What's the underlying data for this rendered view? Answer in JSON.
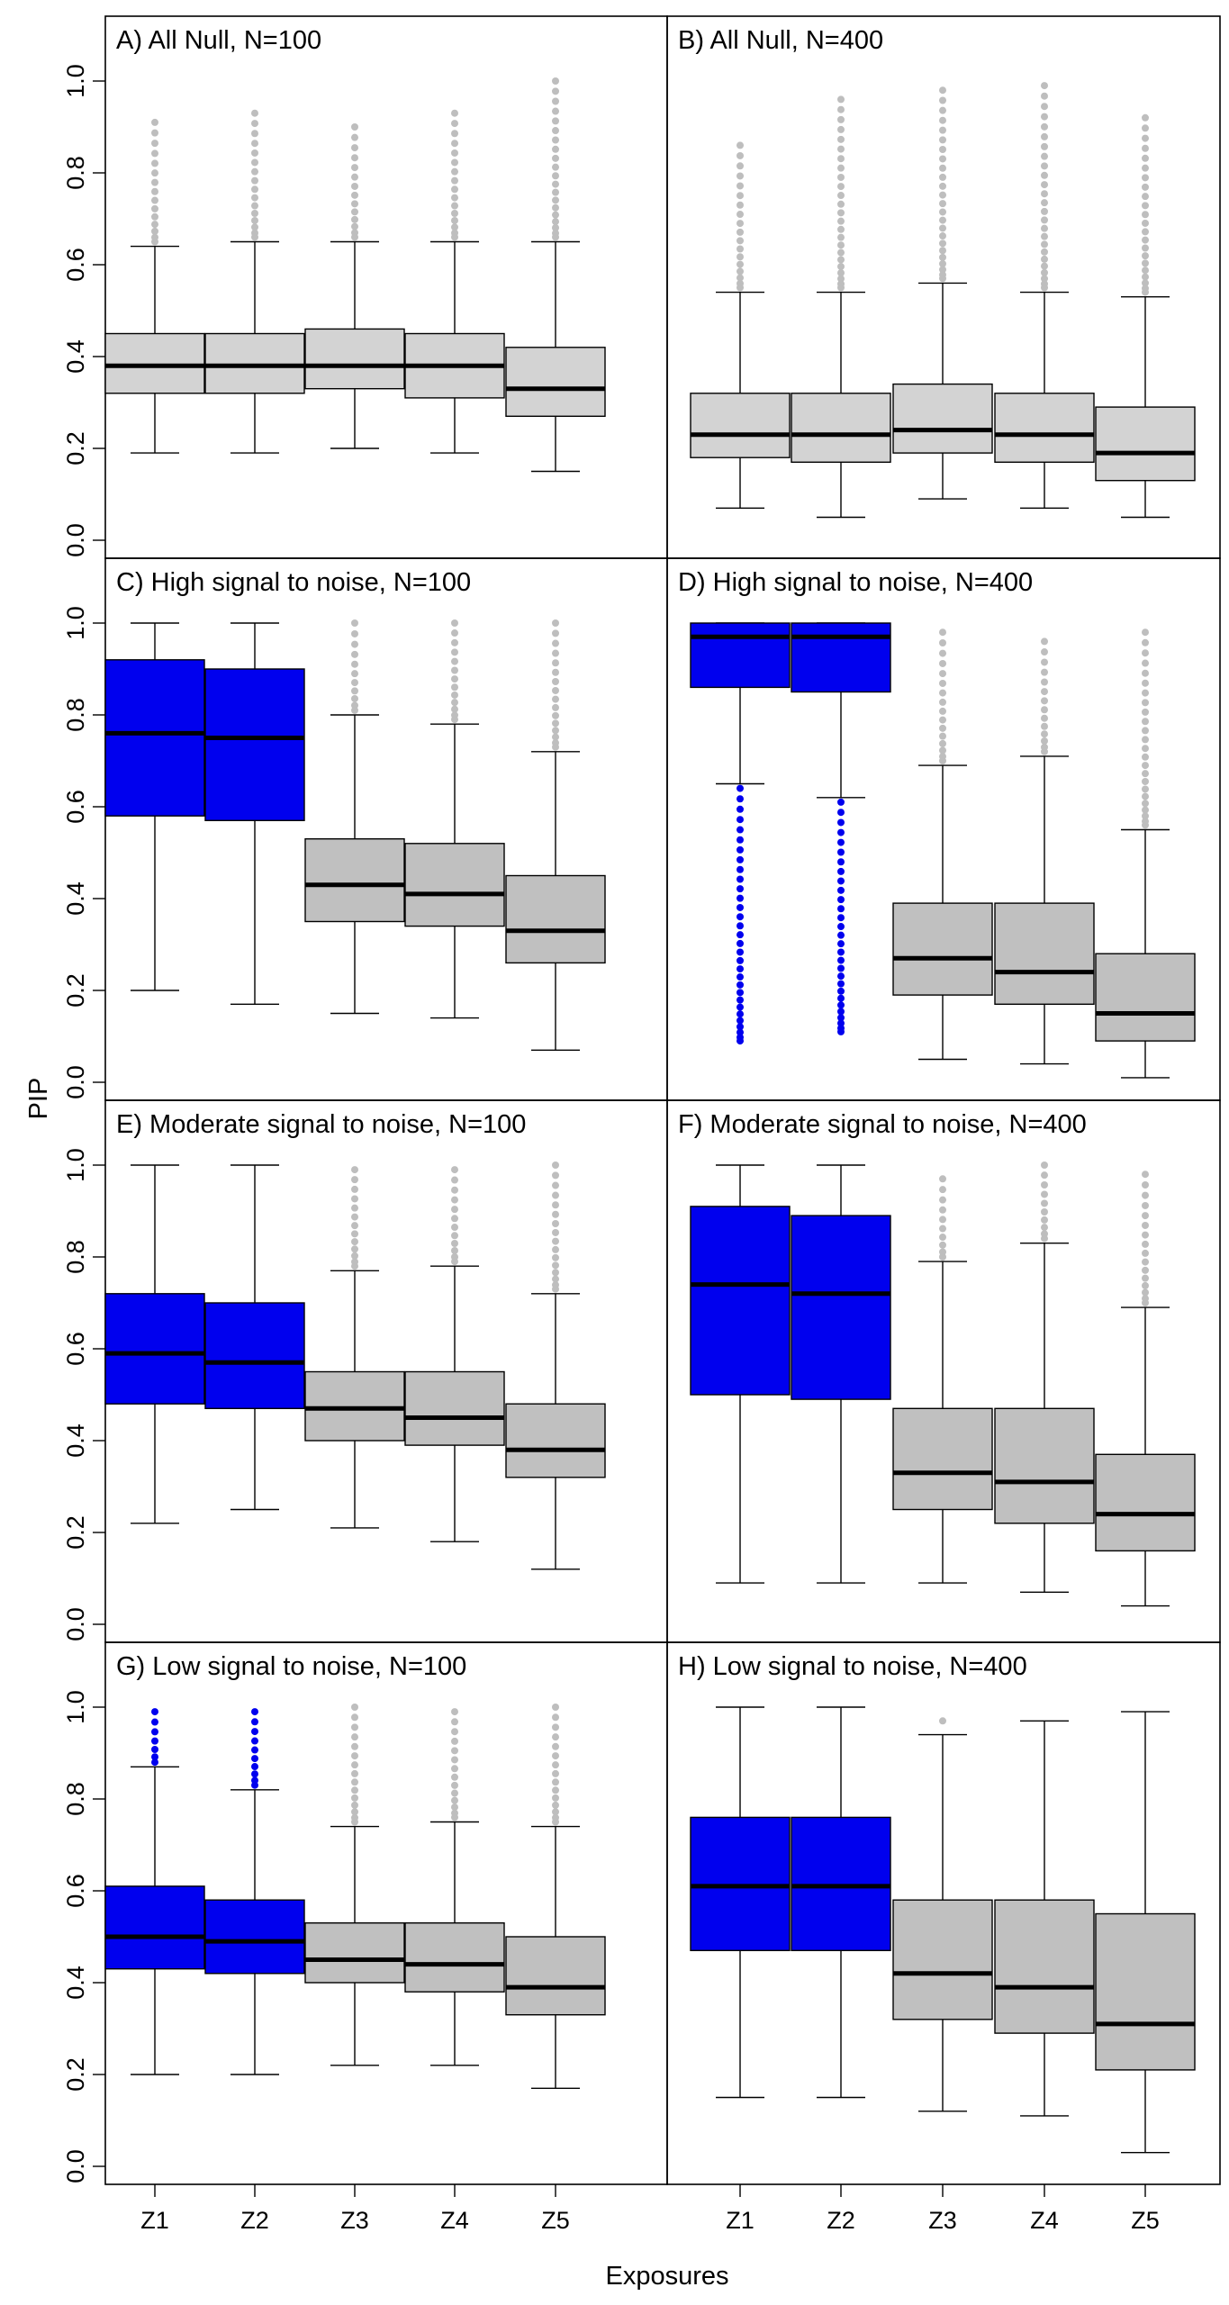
{
  "chart_data": {
    "type": "box",
    "ylabel": "PIP",
    "xlabel": "Exposures",
    "ylim": [
      0,
      1
    ],
    "yticks": [
      "0.0",
      "0.2",
      "0.4",
      "0.6",
      "0.8",
      "1.0"
    ],
    "categories": [
      "Z1",
      "Z2",
      "Z3",
      "Z4",
      "Z5"
    ],
    "colors": {
      "signal": "#0000ee",
      "null": "#d3d3d3",
      "null_dark": "#c0c0c0",
      "outlier_gray": "#bebebe",
      "line": "#000000"
    },
    "panels": [
      {
        "title": "A) All Null, N=100",
        "boxes": [
          {
            "fill": "null",
            "min": 0.19,
            "q1": 0.32,
            "median": 0.38,
            "q3": 0.45,
            "max": 0.64,
            "outliers_from": 0.65,
            "outliers_to": 0.91
          },
          {
            "fill": "null",
            "min": 0.19,
            "q1": 0.32,
            "median": 0.38,
            "q3": 0.45,
            "max": 0.65,
            "outliers_from": 0.66,
            "outliers_to": 0.93
          },
          {
            "fill": "null",
            "min": 0.2,
            "q1": 0.33,
            "median": 0.38,
            "q3": 0.46,
            "max": 0.65,
            "outliers_from": 0.66,
            "outliers_to": 0.9
          },
          {
            "fill": "null",
            "min": 0.19,
            "q1": 0.31,
            "median": 0.38,
            "q3": 0.45,
            "max": 0.65,
            "outliers_from": 0.66,
            "outliers_to": 0.93
          },
          {
            "fill": "null",
            "min": 0.15,
            "q1": 0.27,
            "median": 0.33,
            "q3": 0.42,
            "max": 0.65,
            "outliers_from": 0.66,
            "outliers_to": 1.0
          }
        ]
      },
      {
        "title": "B) All Null, N=400",
        "boxes": [
          {
            "fill": "null",
            "min": 0.07,
            "q1": 0.18,
            "median": 0.23,
            "q3": 0.32,
            "max": 0.54,
            "outliers_from": 0.55,
            "outliers_to": 0.86
          },
          {
            "fill": "null",
            "min": 0.05,
            "q1": 0.17,
            "median": 0.23,
            "q3": 0.32,
            "max": 0.54,
            "outliers_from": 0.55,
            "outliers_to": 0.96
          },
          {
            "fill": "null",
            "min": 0.09,
            "q1": 0.19,
            "median": 0.24,
            "q3": 0.34,
            "max": 0.56,
            "outliers_from": 0.57,
            "outliers_to": 0.98
          },
          {
            "fill": "null",
            "min": 0.07,
            "q1": 0.17,
            "median": 0.23,
            "q3": 0.32,
            "max": 0.54,
            "outliers_from": 0.55,
            "outliers_to": 0.99
          },
          {
            "fill": "null",
            "min": 0.05,
            "q1": 0.13,
            "median": 0.19,
            "q3": 0.29,
            "max": 0.53,
            "outliers_from": 0.54,
            "outliers_to": 0.92
          }
        ]
      },
      {
        "title": "C) High signal to noise, N=100",
        "boxes": [
          {
            "fill": "signal",
            "min": 0.2,
            "q1": 0.58,
            "median": 0.76,
            "q3": 0.92,
            "max": 1.0
          },
          {
            "fill": "signal",
            "min": 0.17,
            "q1": 0.57,
            "median": 0.75,
            "q3": 0.9,
            "max": 1.0
          },
          {
            "fill": "null_dark",
            "min": 0.15,
            "q1": 0.35,
            "median": 0.43,
            "q3": 0.53,
            "max": 0.8,
            "outliers_from": 0.81,
            "outliers_to": 1.0
          },
          {
            "fill": "null_dark",
            "min": 0.14,
            "q1": 0.34,
            "median": 0.41,
            "q3": 0.52,
            "max": 0.78,
            "outliers_from": 0.79,
            "outliers_to": 1.0
          },
          {
            "fill": "null_dark",
            "min": 0.07,
            "q1": 0.26,
            "median": 0.33,
            "q3": 0.45,
            "max": 0.72,
            "outliers_from": 0.73,
            "outliers_to": 1.0
          }
        ]
      },
      {
        "title": "D) High signal to noise, N=400",
        "boxes": [
          {
            "fill": "signal",
            "min": 0.65,
            "q1": 0.86,
            "median": 0.97,
            "q3": 1.0,
            "max": 1.0,
            "outliers_from": 0.09,
            "outliers_to": 0.64,
            "outlier_color": "signal"
          },
          {
            "fill": "signal",
            "min": 0.62,
            "q1": 0.85,
            "median": 0.97,
            "q3": 1.0,
            "max": 1.0,
            "outliers_from": 0.11,
            "outliers_to": 0.61,
            "outlier_color": "signal"
          },
          {
            "fill": "null_dark",
            "min": 0.05,
            "q1": 0.19,
            "median": 0.27,
            "q3": 0.39,
            "max": 0.69,
            "outliers_from": 0.7,
            "outliers_to": 0.98
          },
          {
            "fill": "null_dark",
            "min": 0.04,
            "q1": 0.17,
            "median": 0.24,
            "q3": 0.39,
            "max": 0.71,
            "outliers_from": 0.72,
            "outliers_to": 0.96
          },
          {
            "fill": "null_dark",
            "min": 0.01,
            "q1": 0.09,
            "median": 0.15,
            "q3": 0.28,
            "max": 0.55,
            "outliers_from": 0.56,
            "outliers_to": 0.98
          }
        ]
      },
      {
        "title": "E) Moderate signal to noise, N=100",
        "boxes": [
          {
            "fill": "signal",
            "min": 0.22,
            "q1": 0.48,
            "median": 0.59,
            "q3": 0.72,
            "max": 1.0
          },
          {
            "fill": "signal",
            "min": 0.25,
            "q1": 0.47,
            "median": 0.57,
            "q3": 0.7,
            "max": 1.0
          },
          {
            "fill": "null_dark",
            "min": 0.21,
            "q1": 0.4,
            "median": 0.47,
            "q3": 0.55,
            "max": 0.77,
            "outliers_from": 0.78,
            "outliers_to": 0.99
          },
          {
            "fill": "null_dark",
            "min": 0.18,
            "q1": 0.39,
            "median": 0.45,
            "q3": 0.55,
            "max": 0.78,
            "outliers_from": 0.79,
            "outliers_to": 0.99
          },
          {
            "fill": "null_dark",
            "min": 0.12,
            "q1": 0.32,
            "median": 0.38,
            "q3": 0.48,
            "max": 0.72,
            "outliers_from": 0.73,
            "outliers_to": 1.0
          }
        ]
      },
      {
        "title": "F) Moderate signal to noise, N=400",
        "boxes": [
          {
            "fill": "signal",
            "min": 0.09,
            "q1": 0.5,
            "median": 0.74,
            "q3": 0.91,
            "max": 1.0
          },
          {
            "fill": "signal",
            "min": 0.09,
            "q1": 0.49,
            "median": 0.72,
            "q3": 0.89,
            "max": 1.0
          },
          {
            "fill": "null_dark",
            "min": 0.09,
            "q1": 0.25,
            "median": 0.33,
            "q3": 0.47,
            "max": 0.79,
            "outliers_from": 0.8,
            "outliers_to": 0.97
          },
          {
            "fill": "null_dark",
            "min": 0.07,
            "q1": 0.22,
            "median": 0.31,
            "q3": 0.47,
            "max": 0.83,
            "outliers_from": 0.84,
            "outliers_to": 1.0
          },
          {
            "fill": "null_dark",
            "min": 0.04,
            "q1": 0.16,
            "median": 0.24,
            "q3": 0.37,
            "max": 0.69,
            "outliers_from": 0.7,
            "outliers_to": 0.98
          }
        ]
      },
      {
        "title": "G) Low signal to noise, N=100",
        "boxes": [
          {
            "fill": "signal",
            "min": 0.2,
            "q1": 0.43,
            "median": 0.5,
            "q3": 0.61,
            "max": 0.87,
            "outliers_from": 0.88,
            "outliers_to": 0.99,
            "outlier_color": "signal"
          },
          {
            "fill": "signal",
            "min": 0.2,
            "q1": 0.42,
            "median": 0.49,
            "q3": 0.58,
            "max": 0.82,
            "outliers_from": 0.83,
            "outliers_to": 0.99,
            "outlier_color": "signal"
          },
          {
            "fill": "null_dark",
            "min": 0.22,
            "q1": 0.4,
            "median": 0.45,
            "q3": 0.53,
            "max": 0.74,
            "outliers_from": 0.75,
            "outliers_to": 1.0
          },
          {
            "fill": "null_dark",
            "min": 0.22,
            "q1": 0.38,
            "median": 0.44,
            "q3": 0.53,
            "max": 0.75,
            "outliers_from": 0.76,
            "outliers_to": 0.99
          },
          {
            "fill": "null_dark",
            "min": 0.17,
            "q1": 0.33,
            "median": 0.39,
            "q3": 0.5,
            "max": 0.74,
            "outliers_from": 0.75,
            "outliers_to": 1.0
          }
        ]
      },
      {
        "title": "H) Low signal to noise, N=400",
        "boxes": [
          {
            "fill": "signal",
            "min": 0.15,
            "q1": 0.47,
            "median": 0.61,
            "q3": 0.76,
            "max": 1.0
          },
          {
            "fill": "signal",
            "min": 0.15,
            "q1": 0.47,
            "median": 0.61,
            "q3": 0.76,
            "max": 1.0
          },
          {
            "fill": "null_dark",
            "min": 0.12,
            "q1": 0.32,
            "median": 0.42,
            "q3": 0.58,
            "max": 0.94,
            "outliers_from": 0.97,
            "outliers_to": 0.97
          },
          {
            "fill": "null_dark",
            "min": 0.11,
            "q1": 0.29,
            "median": 0.39,
            "q3": 0.58,
            "max": 0.97
          },
          {
            "fill": "null_dark",
            "min": 0.03,
            "q1": 0.21,
            "median": 0.31,
            "q3": 0.55,
            "max": 0.99
          }
        ]
      }
    ]
  }
}
